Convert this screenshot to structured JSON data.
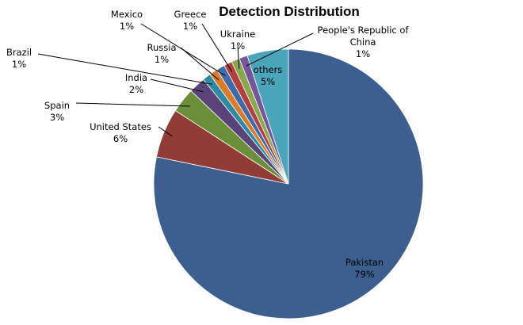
{
  "chart_data": {
    "type": "pie",
    "title": "Detection Distribution",
    "start": "12 o'clock",
    "direction": "clockwise",
    "legend": "none",
    "slices": [
      {
        "name": "Pakistan",
        "value": 79,
        "label": "79%",
        "color": "#3D5F8F"
      },
      {
        "name": "United States",
        "value": 6,
        "label": "6%",
        "color": "#923C38"
      },
      {
        "name": "Spain",
        "value": 3,
        "label": "3%",
        "color": "#6B8E3A"
      },
      {
        "name": "India",
        "value": 2,
        "label": "2%",
        "color": "#5A4378"
      },
      {
        "name": "Brazil",
        "value": 1,
        "label": "1%",
        "color": "#2E8AA0"
      },
      {
        "name": "Russia",
        "value": 1,
        "label": "1%",
        "color": "#D97B2C"
      },
      {
        "name": "Mexico",
        "value": 1,
        "label": "1%",
        "color": "#3F6AA8"
      },
      {
        "name": "Greece",
        "value": 1,
        "label": "1%",
        "color": "#B0413E"
      },
      {
        "name": "Ukraine",
        "value": 1,
        "label": "1%",
        "color": "#8AA64E"
      },
      {
        "name": "People's Republic of China",
        "value": 1,
        "label": "1%",
        "color": "#74579A"
      },
      {
        "name": "others",
        "value": 5,
        "label": "5%",
        "color": "#4AA5BA"
      }
    ]
  }
}
